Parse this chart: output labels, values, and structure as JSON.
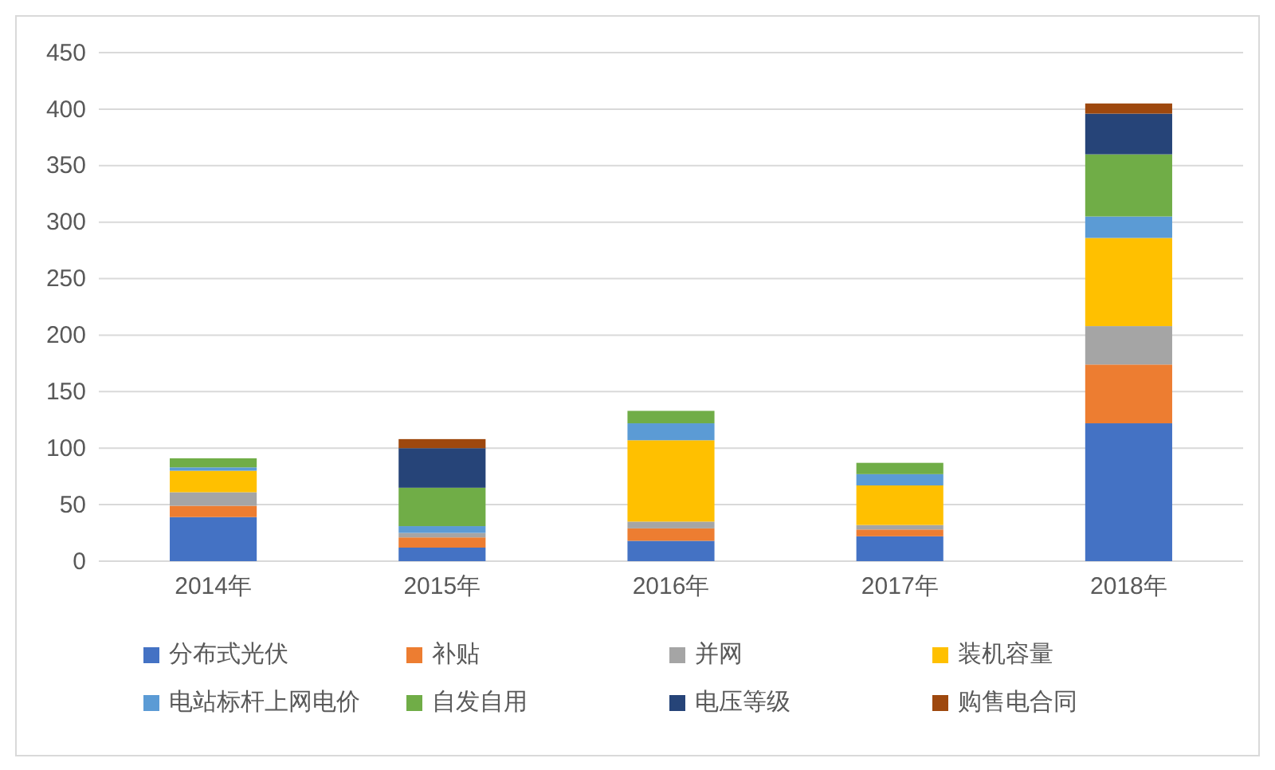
{
  "chart_data": {
    "type": "bar",
    "stacked": true,
    "categories": [
      "2014年",
      "2015年",
      "2016年",
      "2017年",
      "2018年"
    ],
    "series": [
      {
        "name": "分布式光伏",
        "color": "#4472c4",
        "values": [
          39,
          12,
          18,
          22,
          122
        ]
      },
      {
        "name": "补贴",
        "color": "#ed7d31",
        "values": [
          10,
          9,
          11,
          6,
          52
        ]
      },
      {
        "name": "并网",
        "color": "#a5a5a5",
        "values": [
          12,
          4,
          6,
          4,
          34
        ]
      },
      {
        "name": "装机容量",
        "color": "#ffc000",
        "values": [
          19,
          0,
          72,
          35,
          78
        ]
      },
      {
        "name": "电站标杆上网电价",
        "color": "#5b9bd5",
        "values": [
          3,
          6,
          15,
          10,
          19
        ]
      },
      {
        "name": "自发自用",
        "color": "#70ad47",
        "values": [
          8,
          34,
          11,
          10,
          55
        ]
      },
      {
        "name": "电压等级",
        "color": "#264478",
        "values": [
          0,
          35,
          0,
          0,
          36
        ]
      },
      {
        "name": "购售电合同",
        "color": "#9e480e",
        "values": [
          0,
          8,
          0,
          0,
          9
        ]
      }
    ],
    "ylim": [
      0,
      450
    ],
    "yticks": [
      0,
      50,
      100,
      150,
      200,
      250,
      300,
      350,
      400,
      450
    ],
    "grid": "y",
    "legend": "bottom"
  }
}
